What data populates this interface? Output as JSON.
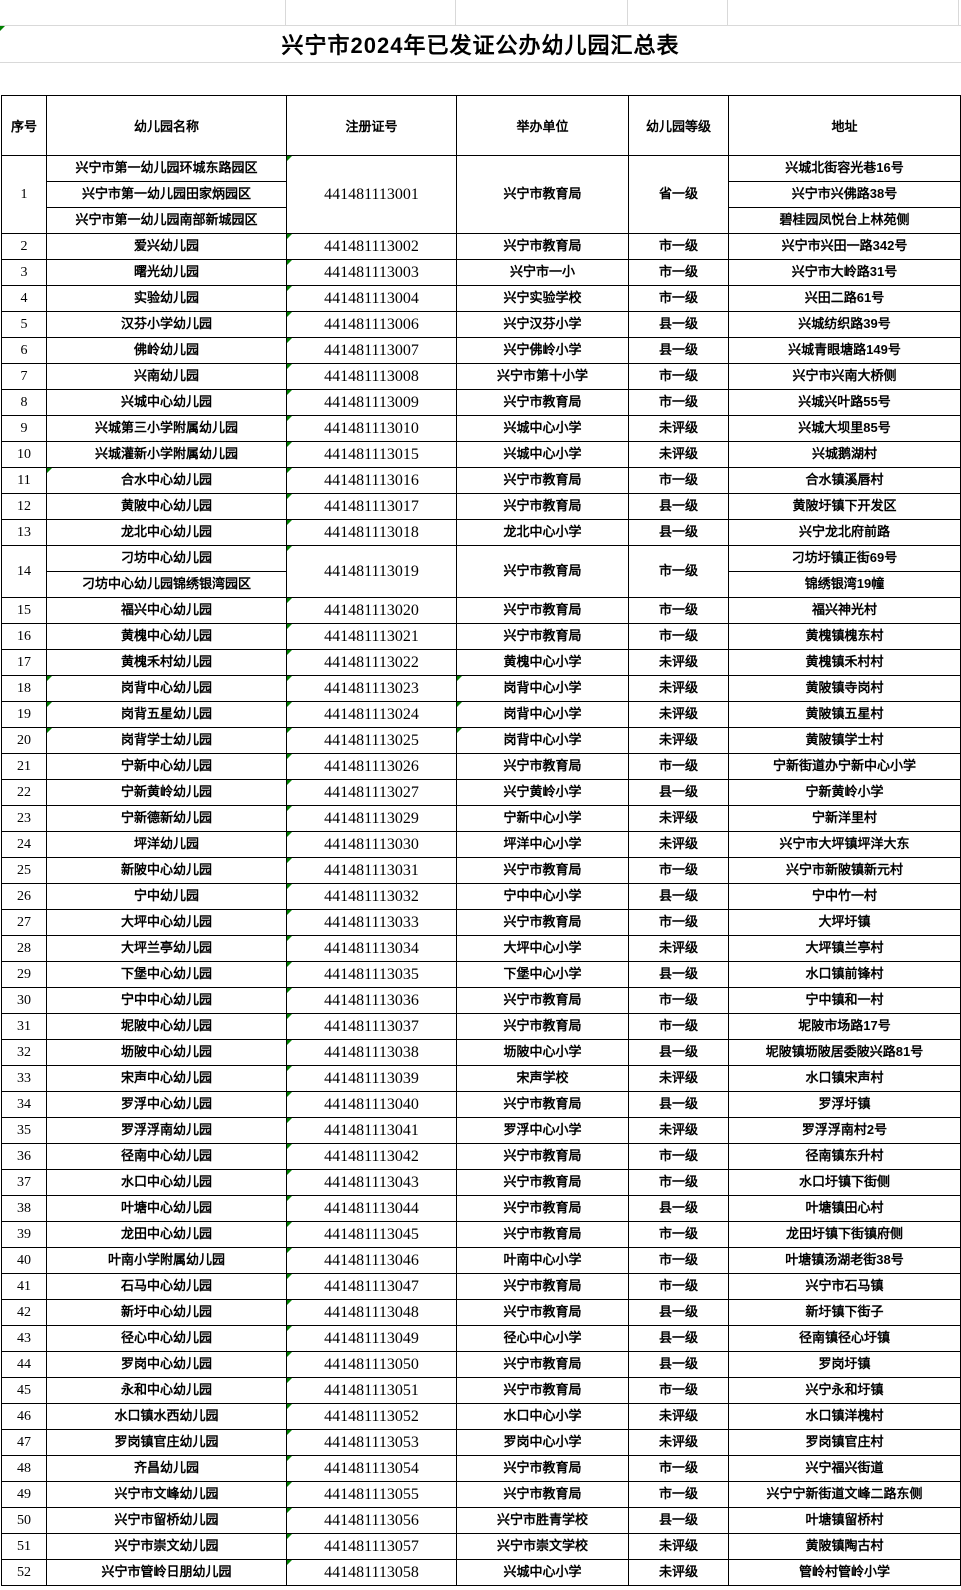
{
  "title": "兴宁市2024年已发证公办幼儿园汇总表",
  "title_marker": true,
  "columns": [
    "序号",
    "幼儿园名称",
    "注册证号",
    "举办单位",
    "幼儿园等级",
    "地址"
  ],
  "colors": {
    "border": "#000000",
    "gridline": "#d9d9d9",
    "error_marker_green": "#008000",
    "background": "#ffffff",
    "text": "#000000"
  },
  "icons": {
    "error_marker": "excel-number-as-text-triangle"
  },
  "rows": [
    {
      "no": "1",
      "name": [
        "兴宁市第一幼儿园环城东路园区",
        "兴宁市第一幼儿园田家炳园区",
        "兴宁市第一幼儿园南部新城园区"
      ],
      "reg": "441481113001",
      "unit": "兴宁市教育局",
      "grade": "省一级",
      "addr": [
        "兴城北街容光巷16号",
        "兴宁市兴佛路38号",
        "碧桂园凤悦台上林苑侧"
      ],
      "green": [
        "reg"
      ]
    },
    {
      "no": "2",
      "name": [
        "爱兴幼儿园"
      ],
      "reg": "441481113002",
      "unit": "兴宁市教育局",
      "grade": "市一级",
      "addr": [
        "兴宁市兴田一路342号"
      ],
      "green": [
        "reg"
      ]
    },
    {
      "no": "3",
      "name": [
        "曙光幼儿园"
      ],
      "reg": "441481113003",
      "unit": "兴宁市一小",
      "grade": "市一级",
      "addr": [
        "兴宁市大岭路31号"
      ],
      "green": [
        "reg"
      ]
    },
    {
      "no": "4",
      "name": [
        "实验幼儿园"
      ],
      "reg": "441481113004",
      "unit": "兴宁实验学校",
      "grade": "市一级",
      "addr": [
        "兴田二路61号"
      ],
      "green": [
        "reg"
      ]
    },
    {
      "no": "5",
      "name": [
        "汉芬小学幼儿园"
      ],
      "reg": "441481113006",
      "unit": "兴宁汉芬小学",
      "grade": "县一级",
      "addr": [
        "兴城纺织路39号"
      ],
      "green": [
        "reg"
      ]
    },
    {
      "no": "6",
      "name": [
        "佛岭幼儿园"
      ],
      "reg": "441481113007",
      "unit": "兴宁佛岭小学",
      "grade": "县一级",
      "addr": [
        "兴城青眼塘路149号"
      ],
      "green": [
        "reg"
      ]
    },
    {
      "no": "7",
      "name": [
        "兴南幼儿园"
      ],
      "reg": "441481113008",
      "unit": "兴宁市第十小学",
      "grade": "市一级",
      "addr": [
        "兴宁市兴南大桥侧"
      ],
      "green": [
        "reg"
      ]
    },
    {
      "no": "8",
      "name": [
        "兴城中心幼儿园"
      ],
      "reg": "441481113009",
      "unit": "兴宁市教育局",
      "grade": "市一级",
      "addr": [
        "兴城兴叶路55号"
      ],
      "green": [
        "reg"
      ]
    },
    {
      "no": "9",
      "name": [
        "兴城第三小学附属幼儿园"
      ],
      "reg": "441481113010",
      "unit": "兴城中心小学",
      "grade": "未评级",
      "addr": [
        "兴城大坝里85号"
      ],
      "green": [
        "reg"
      ]
    },
    {
      "no": "10",
      "name": [
        "兴城灌新小学附属幼儿园"
      ],
      "reg": "441481113015",
      "unit": "兴城中心小学",
      "grade": "未评级",
      "addr": [
        "兴城鹅湖村"
      ],
      "green": [
        "reg"
      ]
    },
    {
      "no": "11",
      "name": [
        "合水中心幼儿园"
      ],
      "reg": "441481113016",
      "unit": "兴宁市教育局",
      "grade": "市一级",
      "addr": [
        "合水镇溪唇村"
      ],
      "green": [
        "name",
        "reg"
      ]
    },
    {
      "no": "12",
      "name": [
        "黄陂中心幼儿园"
      ],
      "reg": "441481113017",
      "unit": "兴宁市教育局",
      "grade": "县一级",
      "addr": [
        "黄陂圩镇下开发区"
      ],
      "green": [
        "reg"
      ]
    },
    {
      "no": "13",
      "name": [
        "龙北中心幼儿园"
      ],
      "reg": "441481113018",
      "unit": "龙北中心小学",
      "grade": "县一级",
      "addr": [
        "兴宁龙北府前路"
      ],
      "green": [
        "reg"
      ]
    },
    {
      "no": "14",
      "name": [
        "刁坊中心幼儿园",
        "刁坊中心幼儿园锦绣银湾园区"
      ],
      "reg": "441481113019",
      "unit": "兴宁市教育局",
      "grade": "市一级",
      "addr": [
        "刁坊圩镇正街69号",
        "锦绣银湾19幢"
      ],
      "green": [
        "reg"
      ]
    },
    {
      "no": "15",
      "name": [
        "福兴中心幼儿园"
      ],
      "reg": "441481113020",
      "unit": "兴宁市教育局",
      "grade": "市一级",
      "addr": [
        "福兴神光村"
      ],
      "green": [
        "reg"
      ]
    },
    {
      "no": "16",
      "name": [
        "黄槐中心幼儿园"
      ],
      "reg": "441481113021",
      "unit": "兴宁市教育局",
      "grade": "市一级",
      "addr": [
        "黄槐镇槐东村"
      ],
      "green": [
        "reg"
      ]
    },
    {
      "no": "17",
      "name": [
        "黄槐禾村幼儿园"
      ],
      "reg": "441481113022",
      "unit": "黄槐中心小学",
      "grade": "未评级",
      "addr": [
        "黄槐镇禾村村"
      ],
      "green": [
        "reg"
      ]
    },
    {
      "no": "18",
      "name": [
        "岗背中心幼儿园"
      ],
      "reg": "441481113023",
      "unit": "岗背中心小学",
      "grade": "未评级",
      "addr": [
        "黄陂镇寺岗村"
      ],
      "green": [
        "name",
        "reg",
        "unit"
      ]
    },
    {
      "no": "19",
      "name": [
        "岗背五星幼儿园"
      ],
      "reg": "441481113024",
      "unit": "岗背中心小学",
      "grade": "未评级",
      "addr": [
        "黄陂镇五星村"
      ],
      "green": [
        "name",
        "reg",
        "unit"
      ]
    },
    {
      "no": "20",
      "name": [
        "岗背学士幼儿园"
      ],
      "reg": "441481113025",
      "unit": "岗背中心小学",
      "grade": "未评级",
      "addr": [
        "黄陂镇学士村"
      ],
      "green": [
        "name",
        "reg",
        "unit"
      ]
    },
    {
      "no": "21",
      "name": [
        "宁新中心幼儿园"
      ],
      "reg": "441481113026",
      "unit": "兴宁市教育局",
      "grade": "市一级",
      "addr": [
        "宁新街道办宁新中心小学"
      ],
      "green": [
        "reg"
      ]
    },
    {
      "no": "22",
      "name": [
        "宁新黄岭幼儿园"
      ],
      "reg": "441481113027",
      "unit": "兴宁黄岭小学",
      "grade": "县一级",
      "addr": [
        "宁新黄岭小学"
      ],
      "green": [
        "reg"
      ]
    },
    {
      "no": "23",
      "name": [
        "宁新德新幼儿园"
      ],
      "reg": "441481113029",
      "unit": "宁新中心小学",
      "grade": "未评级",
      "addr": [
        "宁新洋里村"
      ],
      "green": [
        "reg"
      ]
    },
    {
      "no": "24",
      "name": [
        "坪洋幼儿园"
      ],
      "reg": "441481113030",
      "unit": "坪洋中心小学",
      "grade": "未评级",
      "addr": [
        "兴宁市大坪镇坪洋大东"
      ],
      "green": [
        "reg"
      ]
    },
    {
      "no": "25",
      "name": [
        "新陂中心幼儿园"
      ],
      "reg": "441481113031",
      "unit": "兴宁市教育局",
      "grade": "市一级",
      "addr": [
        "兴宁市新陂镇新元村"
      ],
      "green": [
        "reg"
      ]
    },
    {
      "no": "26",
      "name": [
        "宁中幼儿园"
      ],
      "reg": "441481113032",
      "unit": "宁中中心小学",
      "grade": "县一级",
      "addr": [
        "宁中竹一村"
      ],
      "green": [
        "reg"
      ]
    },
    {
      "no": "27",
      "name": [
        "大坪中心幼儿园"
      ],
      "reg": "441481113033",
      "unit": "兴宁市教育局",
      "grade": "市一级",
      "addr": [
        "大坪圩镇"
      ],
      "green": [
        "reg"
      ]
    },
    {
      "no": "28",
      "name": [
        "大坪兰亭幼儿园"
      ],
      "reg": "441481113034",
      "unit": "大坪中心小学",
      "grade": "未评级",
      "addr": [
        "大坪镇兰亭村"
      ],
      "green": [
        "reg"
      ]
    },
    {
      "no": "29",
      "name": [
        "下堡中心幼儿园"
      ],
      "reg": "441481113035",
      "unit": "下堡中心小学",
      "grade": "县一级",
      "addr": [
        "水口镇前锋村"
      ],
      "green": [
        "reg"
      ]
    },
    {
      "no": "30",
      "name": [
        "宁中中心幼儿园"
      ],
      "reg": "441481113036",
      "unit": "兴宁市教育局",
      "grade": "市一级",
      "addr": [
        "宁中镇和一村"
      ],
      "green": [
        "reg"
      ]
    },
    {
      "no": "31",
      "name": [
        "坭陂中心幼儿园"
      ],
      "reg": "441481113037",
      "unit": "兴宁市教育局",
      "grade": "市一级",
      "addr": [
        "坭陂市场路17号"
      ],
      "green": [
        "reg"
      ]
    },
    {
      "no": "32",
      "name": [
        "坜陂中心幼儿园"
      ],
      "reg": "441481113038",
      "unit": "坜陂中心小学",
      "grade": "县一级",
      "addr": [
        "坭陂镇坜陂居委陂兴路81号"
      ],
      "green": [
        "reg"
      ]
    },
    {
      "no": "33",
      "name": [
        "宋声中心幼儿园"
      ],
      "reg": "441481113039",
      "unit": "宋声学校",
      "grade": "未评级",
      "addr": [
        "水口镇宋声村"
      ],
      "green": [
        "reg"
      ]
    },
    {
      "no": "34",
      "name": [
        "罗浮中心幼儿园"
      ],
      "reg": "441481113040",
      "unit": "兴宁市教育局",
      "grade": "县一级",
      "addr": [
        "罗浮圩镇"
      ],
      "green": [
        "reg"
      ]
    },
    {
      "no": "35",
      "name": [
        "罗浮浮南幼儿园"
      ],
      "reg": "441481113041",
      "unit": "罗浮中心小学",
      "grade": "未评级",
      "addr": [
        "罗浮浮南村2号"
      ],
      "green": [
        "reg"
      ]
    },
    {
      "no": "36",
      "name": [
        "径南中心幼儿园"
      ],
      "reg": "441481113042",
      "unit": "兴宁市教育局",
      "grade": "市一级",
      "addr": [
        "径南镇东升村"
      ],
      "green": [
        "reg"
      ]
    },
    {
      "no": "37",
      "name": [
        "水口中心幼儿园"
      ],
      "reg": "441481113043",
      "unit": "兴宁市教育局",
      "grade": "市一级",
      "addr": [
        "水口圩镇下街侧"
      ],
      "green": [
        "reg"
      ]
    },
    {
      "no": "38",
      "name": [
        "叶塘中心幼儿园"
      ],
      "reg": "441481113044",
      "unit": "兴宁市教育局",
      "grade": "县一级",
      "addr": [
        "叶塘镇田心村"
      ],
      "green": [
        "reg"
      ]
    },
    {
      "no": "39",
      "name": [
        "龙田中心幼儿园"
      ],
      "reg": "441481113045",
      "unit": "兴宁市教育局",
      "grade": "市一级",
      "addr": [
        "龙田圩镇下街镇府侧"
      ],
      "green": [
        "reg"
      ]
    },
    {
      "no": "40",
      "name": [
        "叶南小学附属幼儿园"
      ],
      "reg": "441481113046",
      "unit": "叶南中心小学",
      "grade": "市一级",
      "addr": [
        "叶塘镇汤湖老街38号"
      ],
      "green": [
        "reg"
      ]
    },
    {
      "no": "41",
      "name": [
        "石马中心幼儿园"
      ],
      "reg": "441481113047",
      "unit": "兴宁市教育局",
      "grade": "市一级",
      "addr": [
        "兴宁市石马镇"
      ],
      "green": [
        "reg"
      ]
    },
    {
      "no": "42",
      "name": [
        "新圩中心幼儿园"
      ],
      "reg": "441481113048",
      "unit": "兴宁市教育局",
      "grade": "县一级",
      "addr": [
        "新圩镇下街子"
      ],
      "green": [
        "reg"
      ]
    },
    {
      "no": "43",
      "name": [
        "径心中心幼儿园"
      ],
      "reg": "441481113049",
      "unit": "径心中心小学",
      "grade": "县一级",
      "addr": [
        "径南镇径心圩镇"
      ],
      "green": [
        "reg"
      ]
    },
    {
      "no": "44",
      "name": [
        "罗岗中心幼儿园"
      ],
      "reg": "441481113050",
      "unit": "兴宁市教育局",
      "grade": "县一级",
      "addr": [
        "罗岗圩镇"
      ],
      "green": [
        "reg"
      ]
    },
    {
      "no": "45",
      "name": [
        "永和中心幼儿园"
      ],
      "reg": "441481113051",
      "unit": "兴宁市教育局",
      "grade": "市一级",
      "addr": [
        "兴宁永和圩镇"
      ],
      "green": [
        "reg"
      ]
    },
    {
      "no": "46",
      "name": [
        "水口镇水西幼儿园"
      ],
      "reg": "441481113052",
      "unit": "水口中心小学",
      "grade": "未评级",
      "addr": [
        "水口镇洋槐村"
      ],
      "green": [
        "reg"
      ]
    },
    {
      "no": "47",
      "name": [
        "罗岗镇官庄幼儿园"
      ],
      "reg": "441481113053",
      "unit": "罗岗中心小学",
      "grade": "未评级",
      "addr": [
        "罗岗镇官庄村"
      ],
      "green": [
        "reg"
      ]
    },
    {
      "no": "48",
      "name": [
        "齐昌幼儿园"
      ],
      "reg": "441481113054",
      "unit": "兴宁市教育局",
      "grade": "市一级",
      "addr": [
        "兴宁福兴街道"
      ],
      "green": [
        "reg"
      ]
    },
    {
      "no": "49",
      "name": [
        "兴宁市文峰幼儿园"
      ],
      "reg": "441481113055",
      "unit": "兴宁市教育局",
      "grade": "市一级",
      "addr": [
        "兴宁宁新街道文峰二路东侧"
      ],
      "green": [
        "reg"
      ]
    },
    {
      "no": "50",
      "name": [
        "兴宁市留桥幼儿园"
      ],
      "reg": "441481113056",
      "unit": "兴宁市胜青学校",
      "grade": "县一级",
      "addr": [
        "叶塘镇留桥村"
      ],
      "green": [
        "reg"
      ]
    },
    {
      "no": "51",
      "name": [
        "兴宁市崇文幼儿园"
      ],
      "reg": "441481113057",
      "unit": "兴宁市崇文学校",
      "grade": "未评级",
      "addr": [
        "黄陂镇陶古村"
      ],
      "green": [
        "reg"
      ]
    },
    {
      "no": "52",
      "name": [
        "兴宁市管岭日朋幼儿园"
      ],
      "reg": "441481113058",
      "unit": "兴城中心小学",
      "grade": "未评级",
      "addr": [
        "管岭村管岭小学"
      ],
      "green": [
        "reg"
      ]
    }
  ]
}
